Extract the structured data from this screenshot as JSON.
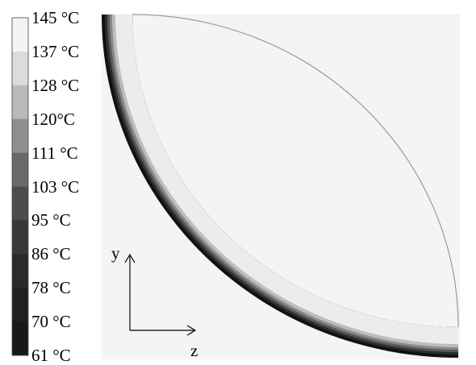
{
  "legend": {
    "labels": [
      "145 °C",
      "137 °C",
      "128 °C",
      "120°C",
      "111 °C",
      "103 °C",
      "95 °C",
      "86 °C",
      "78 °C",
      "70 °C",
      "61 °C"
    ],
    "band_colors": [
      "#f4f4f4",
      "#dcdcdc",
      "#b9b9b9",
      "#8f8f8f",
      "#696969",
      "#4c4c4c",
      "#383838",
      "#2a2a2a",
      "#202020",
      "#181818"
    ]
  },
  "axes": {
    "vertical": "y",
    "horizontal": "z"
  },
  "contour": {
    "background": "#f4f4f4",
    "layers": [
      {
        "color": "#111111",
        "inset": 0
      },
      {
        "color": "#2e2e2e",
        "inset": 4
      },
      {
        "color": "#5a5a5a",
        "inset": 7
      },
      {
        "color": "#8a8a8a",
        "inset": 10
      },
      {
        "color": "#bdbdbd",
        "inset": 13
      },
      {
        "color": "#ececec",
        "inset": 17
      }
    ],
    "inner_boundary": "#9a9a9a"
  }
}
